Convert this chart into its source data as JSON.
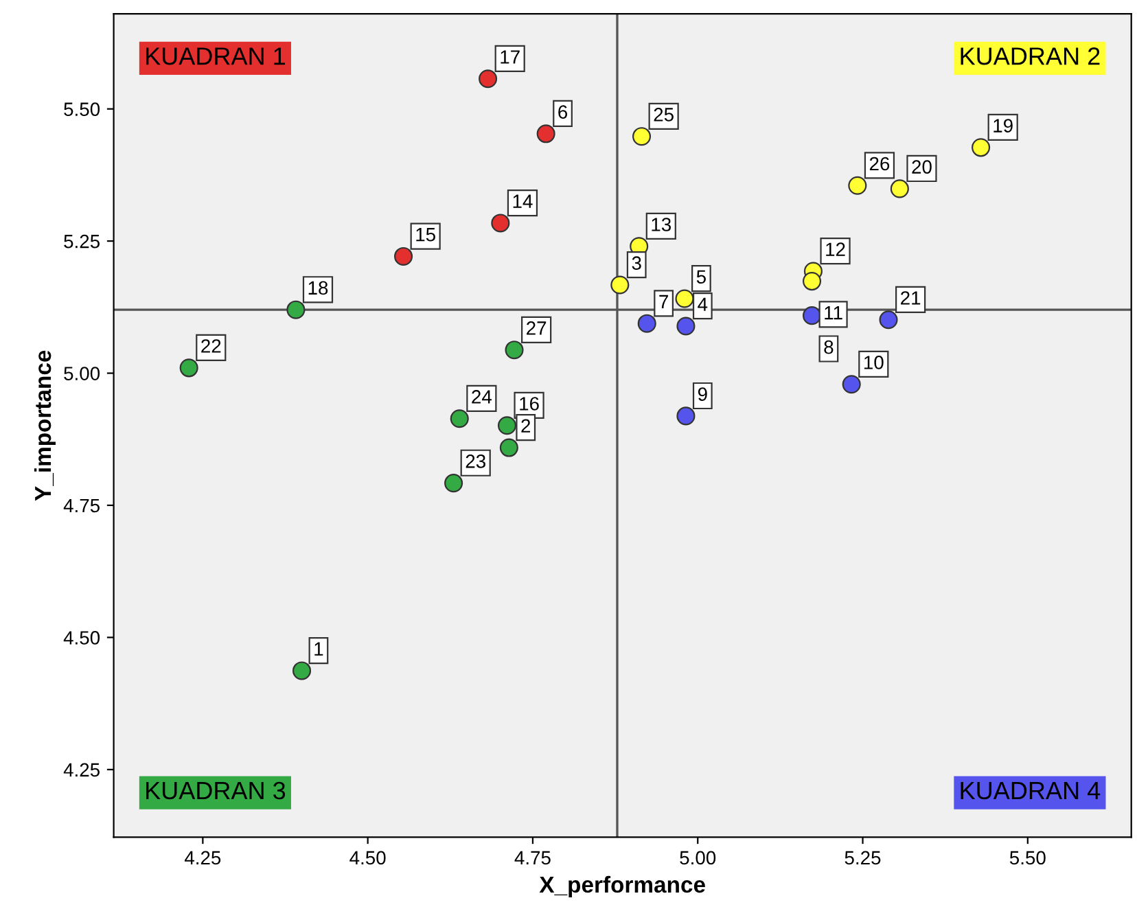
{
  "chart_data": {
    "type": "scatter",
    "xlabel": "X_performance",
    "ylabel": "Y_importance",
    "xlim": [
      4.115,
      5.657
    ],
    "ylim": [
      4.122,
      5.68
    ],
    "xticks": [
      {
        "value": 4.25,
        "label": "4.25"
      },
      {
        "value": 4.5,
        "label": "4.50"
      },
      {
        "value": 4.75,
        "label": "4.75"
      },
      {
        "value": 5.0,
        "label": "5.00"
      },
      {
        "value": 5.25,
        "label": "5.25"
      },
      {
        "value": 5.5,
        "label": "5.50"
      }
    ],
    "yticks": [
      {
        "value": 4.25,
        "label": "4.25"
      },
      {
        "value": 4.5,
        "label": "4.50"
      },
      {
        "value": 4.75,
        "label": "4.75"
      },
      {
        "value": 5.0,
        "label": "5.00"
      },
      {
        "value": 5.25,
        "label": "5.25"
      },
      {
        "value": 5.5,
        "label": "5.50"
      }
    ],
    "grid": false,
    "legend": false,
    "marker": "circle",
    "ref_lines": [
      {
        "axis": "x",
        "value": 4.878,
        "color": "#555555"
      },
      {
        "axis": "y",
        "value": 5.12,
        "color": "#555555"
      }
    ],
    "series": [
      {
        "name": "KUADRAN 1",
        "color": "#e3302f",
        "x": [
          4.682,
          4.77,
          4.701,
          4.554
        ],
        "values": [
          5.557,
          5.453,
          5.284,
          5.221
        ]
      },
      {
        "name": "KUADRAN 2",
        "color": "#ffff33",
        "x": [
          4.915,
          4.911,
          4.882,
          4.98,
          5.175,
          5.173,
          5.242,
          5.306,
          5.429
        ],
        "values": [
          5.448,
          5.24,
          5.167,
          5.141,
          5.193,
          5.174,
          5.355,
          5.349,
          5.427
        ]
      },
      {
        "name": "KUADRAN 3",
        "color": "#33aa44",
        "x": [
          4.391,
          4.229,
          4.722,
          4.639,
          4.711,
          4.714,
          4.63,
          4.4
        ],
        "values": [
          5.12,
          5.01,
          5.044,
          4.914,
          4.901,
          4.859,
          4.792,
          4.437
        ]
      },
      {
        "name": "KUADRAN 4",
        "color": "#5555ee",
        "x": [
          4.923,
          4.982,
          5.173,
          5.289,
          5.233,
          4.982
        ],
        "values": [
          5.094,
          5.089,
          5.109,
          5.101,
          4.979,
          4.919
        ]
      }
    ],
    "annotations": [
      {
        "text": "17",
        "x": 4.682,
        "y": 5.557
      },
      {
        "text": "6",
        "x": 4.77,
        "y": 5.453
      },
      {
        "text": "14",
        "x": 4.701,
        "y": 5.284
      },
      {
        "text": "15",
        "x": 4.554,
        "y": 5.221
      },
      {
        "text": "25",
        "x": 4.915,
        "y": 5.448
      },
      {
        "text": "13",
        "x": 4.911,
        "y": 5.24
      },
      {
        "text": "3",
        "x": 4.882,
        "y": 5.167
      },
      {
        "text": "5",
        "x": 4.98,
        "y": 5.141
      },
      {
        "text": "12",
        "x": 5.175,
        "y": 5.193
      },
      {
        "text": "11",
        "x": 5.173,
        "y": 5.174
      },
      {
        "text": "26",
        "x": 5.242,
        "y": 5.355
      },
      {
        "text": "20",
        "x": 5.306,
        "y": 5.349
      },
      {
        "text": "19",
        "x": 5.429,
        "y": 5.427
      },
      {
        "text": "18",
        "x": 4.391,
        "y": 5.12
      },
      {
        "text": "22",
        "x": 4.229,
        "y": 5.01
      },
      {
        "text": "27",
        "x": 4.722,
        "y": 5.044
      },
      {
        "text": "24",
        "x": 4.639,
        "y": 4.914
      },
      {
        "text": "16",
        "x": 4.711,
        "y": 4.901
      },
      {
        "text": "2",
        "x": 4.714,
        "y": 4.859
      },
      {
        "text": "23",
        "x": 4.63,
        "y": 4.792
      },
      {
        "text": "1",
        "x": 4.4,
        "y": 4.437
      },
      {
        "text": "7",
        "x": 4.923,
        "y": 5.094
      },
      {
        "text": "4",
        "x": 4.982,
        "y": 5.089
      },
      {
        "text": "8",
        "x": 5.173,
        "y": 5.109
      },
      {
        "text": "21",
        "x": 5.289,
        "y": 5.101
      },
      {
        "text": "10",
        "x": 5.233,
        "y": 4.979
      },
      {
        "text": "9",
        "x": 4.982,
        "y": 4.919
      }
    ]
  }
}
